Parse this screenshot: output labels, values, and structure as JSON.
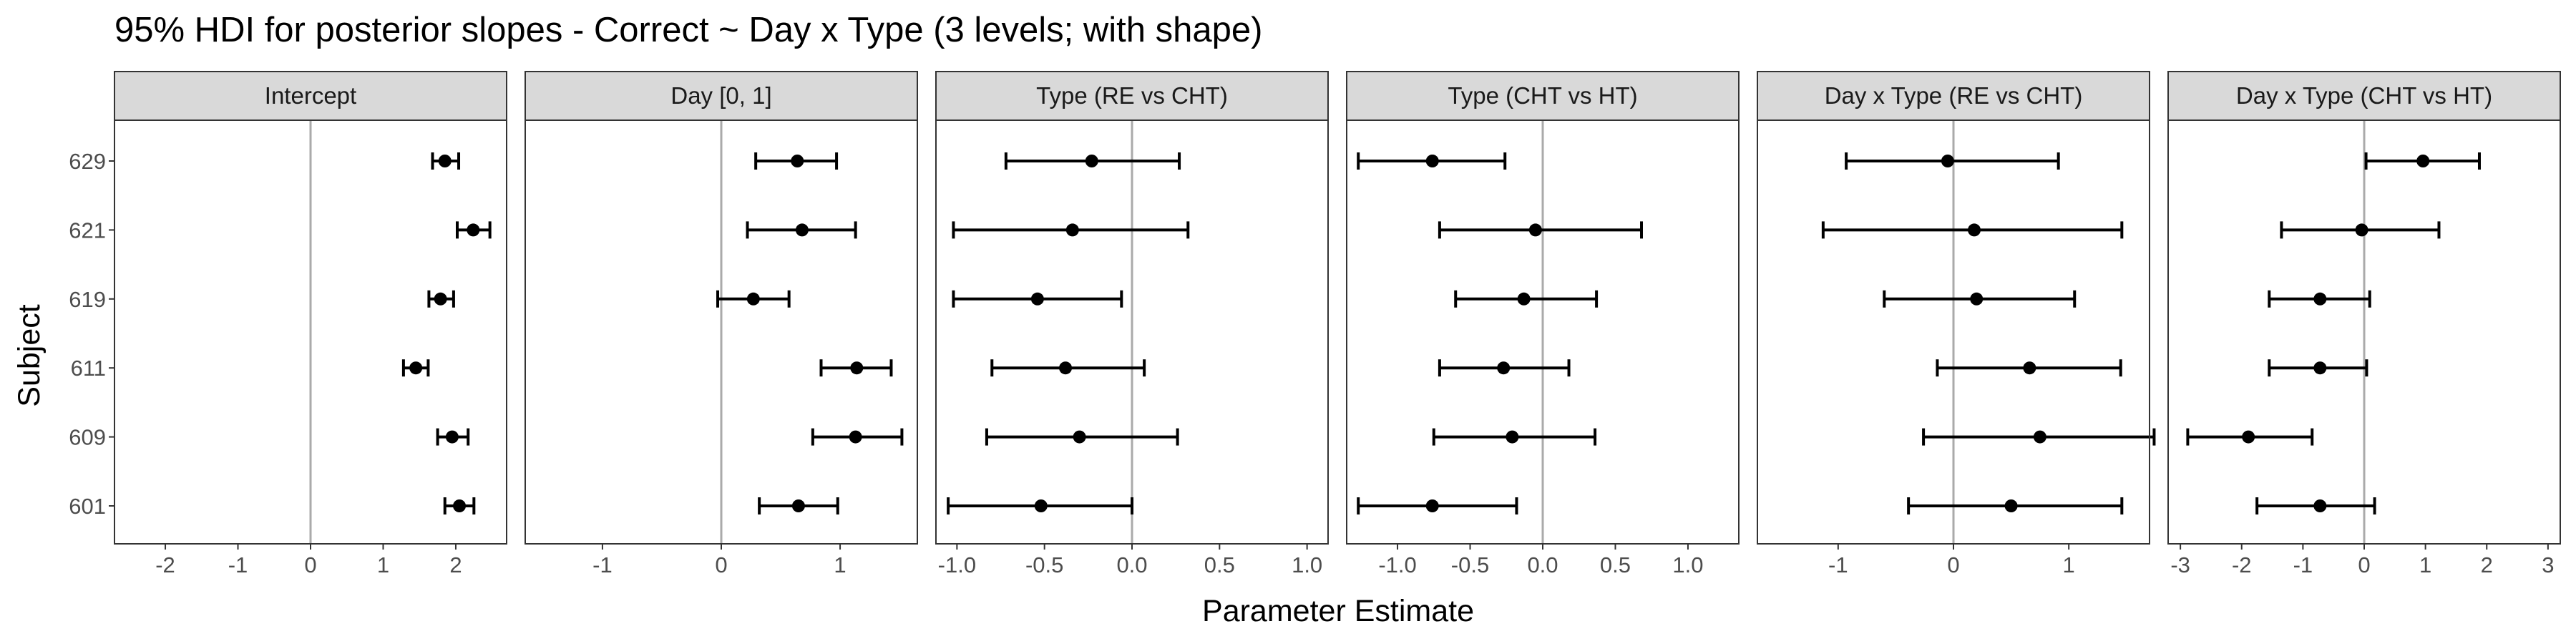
{
  "chart_data": {
    "type": "errorbar",
    "title": "95% HDI for posterior slopes - Correct ~ Day x Type (3 levels; with shape)",
    "xlabel": "Parameter Estimate",
    "ylabel": "Subject",
    "subjects": [
      "629",
      "621",
      "619",
      "611",
      "609",
      "601"
    ],
    "panels": [
      {
        "name": "Intercept",
        "xlim": [
          -2.7,
          2.7
        ],
        "ticks": [
          -2,
          -1,
          0,
          1,
          2
        ],
        "tick_labels": [
          "-2",
          "-1",
          "0",
          "1",
          "2"
        ],
        "estimates": [
          {
            "subject": "629",
            "est": 1.85,
            "lower": 1.68,
            "upper": 2.04
          },
          {
            "subject": "621",
            "est": 2.24,
            "lower": 2.02,
            "upper": 2.47
          },
          {
            "subject": "619",
            "est": 1.79,
            "lower": 1.63,
            "upper": 1.97
          },
          {
            "subject": "611",
            "est": 1.45,
            "lower": 1.28,
            "upper": 1.62
          },
          {
            "subject": "609",
            "est": 1.95,
            "lower": 1.75,
            "upper": 2.17
          },
          {
            "subject": "601",
            "est": 2.05,
            "lower": 1.85,
            "upper": 2.25
          }
        ]
      },
      {
        "name": "Day [0, 1]",
        "xlim": [
          -1.65,
          1.65
        ],
        "ticks": [
          -1,
          0,
          1
        ],
        "tick_labels": [
          "-1",
          "0",
          "1"
        ],
        "estimates": [
          {
            "subject": "629",
            "est": 0.64,
            "lower": 0.29,
            "upper": 0.97
          },
          {
            "subject": "621",
            "est": 0.68,
            "lower": 0.22,
            "upper": 1.13
          },
          {
            "subject": "619",
            "est": 0.27,
            "lower": -0.03,
            "upper": 0.57
          },
          {
            "subject": "611",
            "est": 1.14,
            "lower": 0.84,
            "upper": 1.43
          },
          {
            "subject": "609",
            "est": 1.13,
            "lower": 0.77,
            "upper": 1.52
          },
          {
            "subject": "601",
            "est": 0.65,
            "lower": 0.32,
            "upper": 0.98
          }
        ]
      },
      {
        "name": "Type (RE vs CHT)",
        "xlim": [
          -1.12,
          1.12
        ],
        "ticks": [
          -1.0,
          -0.5,
          0.0,
          0.5,
          1.0
        ],
        "tick_labels": [
          "-1.0",
          "-0.5",
          "0.0",
          "0.5",
          "1.0"
        ],
        "estimates": [
          {
            "subject": "629",
            "est": -0.23,
            "lower": -0.72,
            "upper": 0.27
          },
          {
            "subject": "621",
            "est": -0.34,
            "lower": -1.02,
            "upper": 0.32
          },
          {
            "subject": "619",
            "est": -0.54,
            "lower": -1.02,
            "upper": -0.06
          },
          {
            "subject": "611",
            "est": -0.38,
            "lower": -0.8,
            "upper": 0.07
          },
          {
            "subject": "609",
            "est": -0.3,
            "lower": -0.83,
            "upper": 0.26
          },
          {
            "subject": "601",
            "est": -0.52,
            "lower": -1.05,
            "upper": 0.0
          }
        ]
      },
      {
        "name": "Type (CHT vs HT)",
        "xlim": [
          -1.35,
          1.35
        ],
        "ticks": [
          -1.0,
          -0.5,
          0.0,
          0.5,
          1.0
        ],
        "tick_labels": [
          "-1.0",
          "-0.5",
          "0.0",
          "0.5",
          "1.0"
        ],
        "estimates": [
          {
            "subject": "629",
            "est": -0.76,
            "lower": -1.27,
            "upper": -0.26
          },
          {
            "subject": "621",
            "est": -0.05,
            "lower": -0.71,
            "upper": 0.68
          },
          {
            "subject": "619",
            "est": -0.13,
            "lower": -0.6,
            "upper": 0.37
          },
          {
            "subject": "611",
            "est": -0.27,
            "lower": -0.71,
            "upper": 0.18
          },
          {
            "subject": "609",
            "est": -0.21,
            "lower": -0.75,
            "upper": 0.36
          },
          {
            "subject": "601",
            "est": -0.76,
            "lower": -1.27,
            "upper": -0.18
          }
        ]
      },
      {
        "name": "Day x Type (RE vs CHT)",
        "xlim": [
          -1.7,
          1.7
        ],
        "ticks": [
          -1,
          0,
          1
        ],
        "tick_labels": [
          "-1",
          "0",
          "1"
        ],
        "estimates": [
          {
            "subject": "629",
            "est": -0.05,
            "lower": -0.93,
            "upper": 0.91
          },
          {
            "subject": "621",
            "est": 0.18,
            "lower": -1.13,
            "upper": 1.46
          },
          {
            "subject": "619",
            "est": 0.2,
            "lower": -0.6,
            "upper": 1.05
          },
          {
            "subject": "611",
            "est": 0.66,
            "lower": -0.14,
            "upper": 1.45
          },
          {
            "subject": "609",
            "est": 0.75,
            "lower": -0.26,
            "upper": 1.74
          },
          {
            "subject": "601",
            "est": 0.5,
            "lower": -0.39,
            "upper": 1.46
          }
        ]
      },
      {
        "name": "Day x Type (CHT vs HT)",
        "xlim": [
          -3.2,
          3.2
        ],
        "ticks": [
          -3,
          -2,
          -1,
          0,
          1,
          2,
          3
        ],
        "tick_labels": [
          "-3",
          "-2",
          "-1",
          "0",
          "1",
          "2",
          "3"
        ],
        "estimates": [
          {
            "subject": "629",
            "est": 0.96,
            "lower": 0.03,
            "upper": 1.88
          },
          {
            "subject": "621",
            "est": -0.04,
            "lower": -1.35,
            "upper": 1.22
          },
          {
            "subject": "619",
            "est": -0.72,
            "lower": -1.55,
            "upper": 0.09
          },
          {
            "subject": "611",
            "est": -0.72,
            "lower": -1.55,
            "upper": 0.04
          },
          {
            "subject": "609",
            "est": -1.89,
            "lower": -2.88,
            "upper": -0.85
          },
          {
            "subject": "601",
            "est": -0.72,
            "lower": -1.75,
            "upper": 0.17
          }
        ]
      }
    ]
  }
}
